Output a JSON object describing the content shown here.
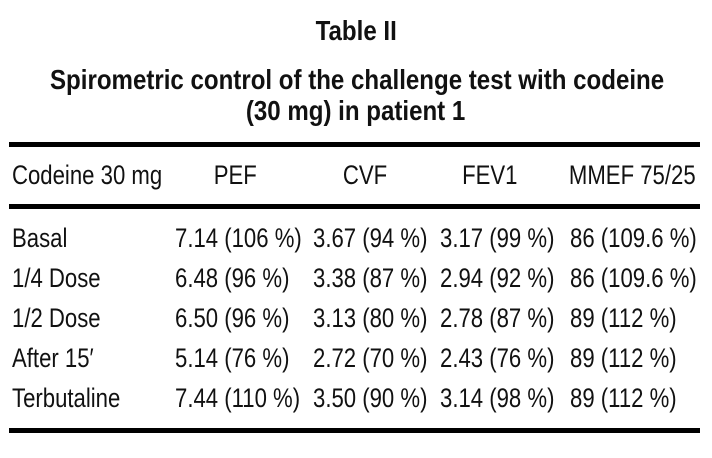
{
  "table": {
    "number": "Table II",
    "caption_line1": "Spirometric control of the challenge test with codeine",
    "caption_line2": "(30 mg) in patient 1",
    "columns": [
      "Codeine 30 mg",
      "PEF",
      "CVF",
      "FEV1",
      "MMEF 75/25"
    ],
    "rows": [
      [
        "Basal",
        "7.14 (106 %)",
        "3.67 (94 %)",
        "3.17 (99 %)",
        "86 (109.6 %)"
      ],
      [
        "1/4 Dose",
        "6.48 (96 %)",
        "3.38 (87 %)",
        "2.94 (92 %)",
        "86 (109.6 %)"
      ],
      [
        "1/2 Dose",
        "6.50 (96 %)",
        "3.13 (80 %)",
        "2.78 (87 %)",
        "89 (112 %)"
      ],
      [
        "After 15′",
        "5.14 (76 %)",
        "2.72 (70 %)",
        "2.43 (76 %)",
        "89 (112 %)"
      ],
      [
        "Terbutaline",
        "7.44 (110 %)",
        "3.50 (90 %)",
        "3.14 (98 %)",
        "89 (112 %)"
      ]
    ],
    "colors": {
      "text": "#111111",
      "rule": "#000000",
      "background": "#ffffff"
    }
  }
}
